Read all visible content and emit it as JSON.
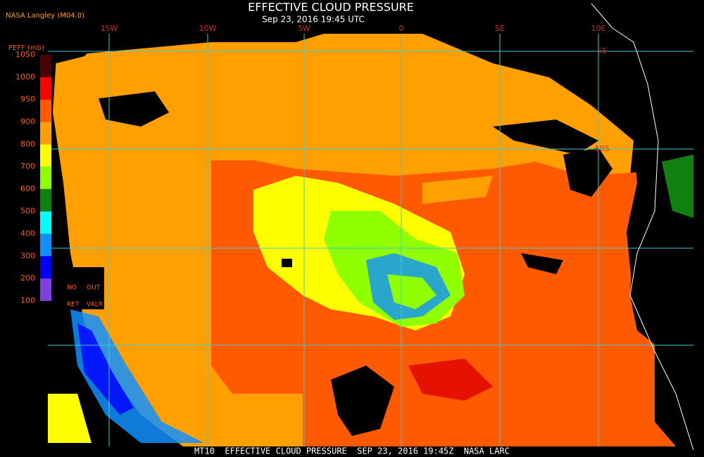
{
  "header": {
    "title": "EFFECTIVE CLOUD PRESSURE",
    "subtitle": "Sep 23, 2016 19:45 UTC",
    "source": "NASA Langley (M04.0)"
  },
  "map": {
    "longitude_labels": [
      "15W",
      "10W",
      "5W",
      "0",
      "5E",
      "10E"
    ],
    "latitude_labels": [
      "5S",
      "10S"
    ]
  },
  "legend": {
    "title": "PEFF (mb)",
    "ticks": [
      1050,
      1000,
      950,
      900,
      800,
      700,
      600,
      500,
      400,
      300,
      200,
      100
    ],
    "colors": [
      "#4a0000",
      "#ff0000",
      "#ff5a00",
      "#ffa000",
      "#ffff00",
      "#90ff00",
      "#108010",
      "#00ffff",
      "#1090ff",
      "#0000ff",
      "#8040e0"
    ],
    "notes": [
      "NO",
      "OUT",
      "RET",
      "VALR"
    ]
  },
  "footer": "MT10  EFFECTIVE CLOUD PRESSURE  SEP 23, 2016 19:45Z  NASA LARC"
}
